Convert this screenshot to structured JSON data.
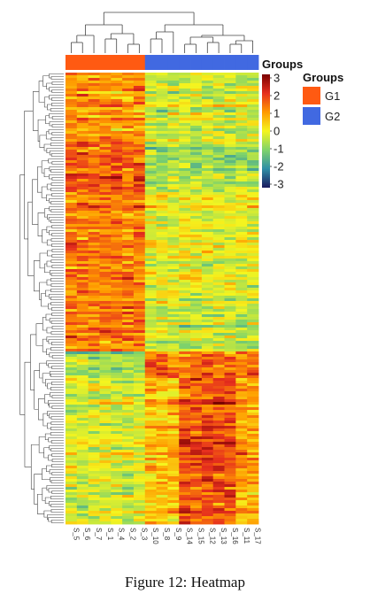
{
  "figure": {
    "caption": "Figure 12: Heatmap"
  },
  "chart_data": {
    "type": "heatmap",
    "samples": [
      "S_5",
      "S_6",
      "S_7",
      "S_1",
      "S_4",
      "S_2",
      "S_3",
      "S_10",
      "S_8",
      "S_9",
      "S_14",
      "S_15",
      "S_12",
      "S_13",
      "S_16",
      "S_11",
      "S_17"
    ],
    "groups": [
      "G1",
      "G1",
      "G1",
      "G1",
      "G1",
      "G1",
      "G1",
      "G2",
      "G2",
      "G2",
      "G2",
      "G2",
      "G2",
      "G2",
      "G2",
      "G2",
      "G2"
    ],
    "group_legend": {
      "title": "Groups",
      "items": [
        {
          "label": "G1",
          "color": "#ff5a12"
        },
        {
          "label": "G2",
          "color": "#4169e1"
        }
      ]
    },
    "colorbar": {
      "title": "Groups",
      "range": [
        -3,
        3
      ],
      "ticks": [
        "3",
        "2",
        "1",
        "0",
        "-1",
        "-2",
        "-3"
      ],
      "colors": [
        "#1a1a5e",
        "#2f8fa6",
        "#7fd36b",
        "#f5f51e",
        "#ff9900",
        "#e62e1e",
        "#7a0000"
      ]
    },
    "row_count": 170,
    "column_dendrogram": true,
    "row_dendrogram": true,
    "value_blocks": [
      {
        "rows": "1-26",
        "G1": 1.0,
        "G2": -0.3,
        "note": "mixed high in G1"
      },
      {
        "rows": "27-45",
        "G1": 1.6,
        "G2": -0.6
      },
      {
        "rows": "46-88",
        "G1": 1.1,
        "G2": -0.2
      },
      {
        "rows": "89-105",
        "G1": 1.3,
        "G2": -0.4
      },
      {
        "rows": "106-115",
        "G1": -0.7,
        "G2": 1.4
      },
      {
        "rows": "116-170",
        "G1": -0.2,
        "G2": 0.9
      }
    ]
  }
}
